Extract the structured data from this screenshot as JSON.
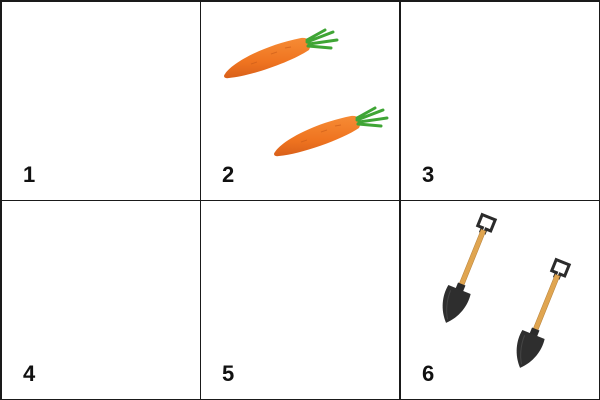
{
  "cells": [
    {
      "label": "1",
      "contents": []
    },
    {
      "label": "2",
      "contents": [
        "carrot-icon",
        "carrot-icon"
      ]
    },
    {
      "label": "3",
      "contents": []
    },
    {
      "label": "4",
      "contents": []
    },
    {
      "label": "5",
      "contents": []
    },
    {
      "label": "6",
      "contents": [
        "shovel-icon",
        "shovel-icon"
      ]
    }
  ],
  "colors": {
    "grid_line": "#1a1a1a",
    "carrot": "#f07a22",
    "carrot_leaves": "#3fa535",
    "shovel_blade": "#2b2b2b",
    "shovel_handle": "#e0a550"
  }
}
